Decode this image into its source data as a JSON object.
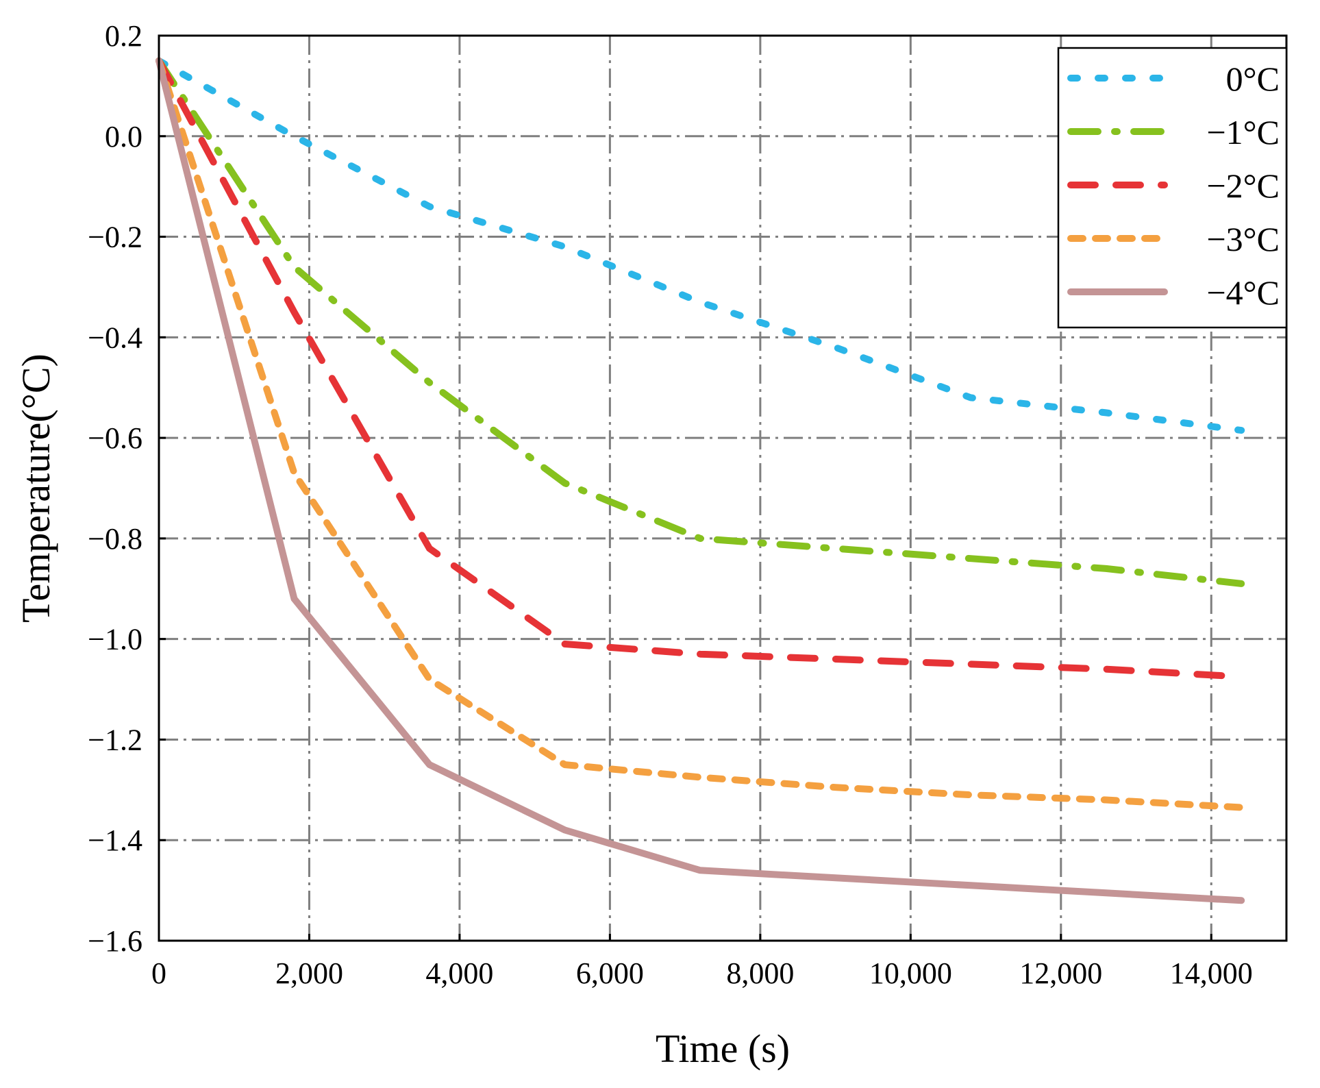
{
  "chart_data": {
    "type": "line",
    "title": "",
    "xlabel": "Time (s)",
    "ylabel": "Temperature(°C)",
    "xlim": [
      0,
      15000
    ],
    "ylim": [
      -1.6,
      0.2
    ],
    "grid": true,
    "legend_position": "top-right",
    "x_ticks": [
      0,
      2000,
      4000,
      6000,
      8000,
      10000,
      12000,
      14000
    ],
    "x_tick_labels": [
      "0",
      "2,000",
      "4,000",
      "6,000",
      "8,000",
      "10,000",
      "12,000",
      "14,000"
    ],
    "y_ticks": [
      0.2,
      0.0,
      -0.2,
      -0.4,
      -0.6,
      -0.8,
      -1.0,
      -1.2,
      -1.4,
      -1.6
    ],
    "y_tick_labels": [
      "0.2",
      "0.0",
      "−0.2",
      "−0.4",
      "−0.6",
      "−0.8",
      "−1.0",
      "−1.2",
      "−1.4",
      "−1.6"
    ],
    "x": [
      0,
      1800,
      3600,
      5400,
      7200,
      9000,
      10800,
      12600,
      14400
    ],
    "series": [
      {
        "name": "0°C",
        "label": "0°C",
        "color": "#2bb5e8",
        "dash": "dot",
        "values": [
          0.15,
          0.0,
          -0.14,
          -0.22,
          -0.33,
          -0.42,
          -0.52,
          -0.55,
          -0.585
        ]
      },
      {
        "name": "-1°C",
        "label": "−1°C",
        "color": "#86c11e",
        "dash": "dashdot",
        "values": [
          0.15,
          -0.26,
          -0.49,
          -0.69,
          -0.8,
          -0.82,
          -0.84,
          -0.86,
          -0.89
        ]
      },
      {
        "name": "-2°C",
        "label": "−2°C",
        "color": "#e63336",
        "dash": "dash",
        "values": [
          0.15,
          -0.35,
          -0.82,
          -1.01,
          -1.03,
          -1.04,
          -1.05,
          -1.06,
          -1.075
        ]
      },
      {
        "name": "-3°C",
        "label": "−3°C",
        "color": "#f4a040",
        "dash": "shortdash",
        "values": [
          0.15,
          -0.67,
          -1.08,
          -1.25,
          -1.275,
          -1.295,
          -1.31,
          -1.32,
          -1.335
        ]
      },
      {
        "name": "-4°C",
        "label": "−4°C",
        "color": "#c49495",
        "dash": "solid",
        "values": [
          0.15,
          -0.92,
          -1.25,
          -1.38,
          -1.46,
          -1.475,
          -1.49,
          -1.505,
          -1.52
        ]
      }
    ]
  }
}
